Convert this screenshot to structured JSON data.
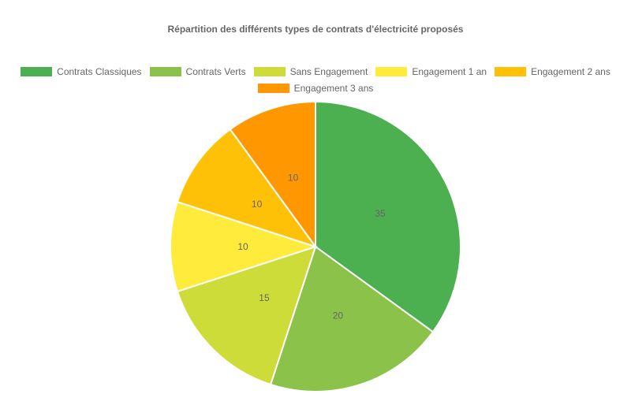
{
  "chart_data": {
    "type": "pie",
    "title": "Répartition des différents types de contrats d'électricité proposés",
    "legend_position": "top",
    "categories": [
      "Contrats Classiques",
      "Contrats Verts",
      "Sans Engagement",
      "Engagement 1 an",
      "Engagement 2 ans",
      "Engagement 3 ans"
    ],
    "values": [
      35,
      20,
      15,
      10,
      10,
      10
    ],
    "colors": [
      "#4caf50",
      "#8bc34a",
      "#cddc39",
      "#ffeb3b",
      "#ffc107",
      "#ff9800"
    ],
    "data_labels": [
      "35",
      "20",
      "15",
      "10",
      "10",
      "10"
    ]
  }
}
